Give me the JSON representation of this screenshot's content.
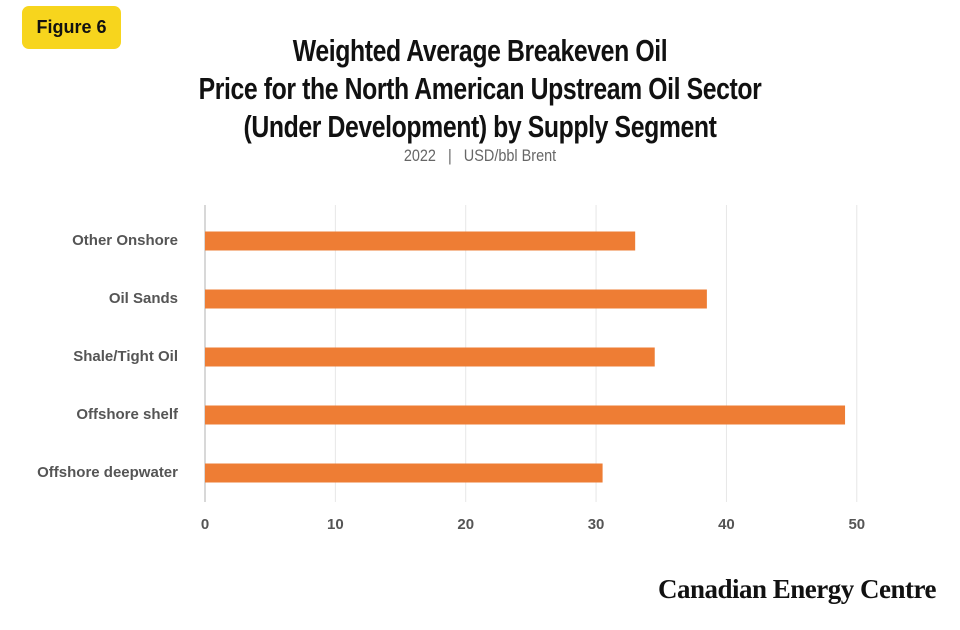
{
  "figure_label": "Figure 6",
  "source": "Canadian Energy Centre",
  "chart_data": {
    "type": "bar",
    "orientation": "horizontal",
    "title": "Weighted Average Breakeven Oil\nPrice for the North American Upstream Oil Sector\n(Under Development) by Supply Segment",
    "subtitle": "2022   |   USD/bbl Brent",
    "categories": [
      "Other Onshore",
      "Oil Sands",
      "Shale/Tight Oil",
      "Offshore shelf",
      "Offshore deepwater"
    ],
    "values": [
      33,
      38.5,
      34.5,
      49.1,
      30.5
    ],
    "color": "#ee7d34",
    "xlim": [
      0,
      56
    ],
    "xticks": [
      0,
      10,
      20,
      30,
      40,
      50
    ],
    "grid": true
  }
}
